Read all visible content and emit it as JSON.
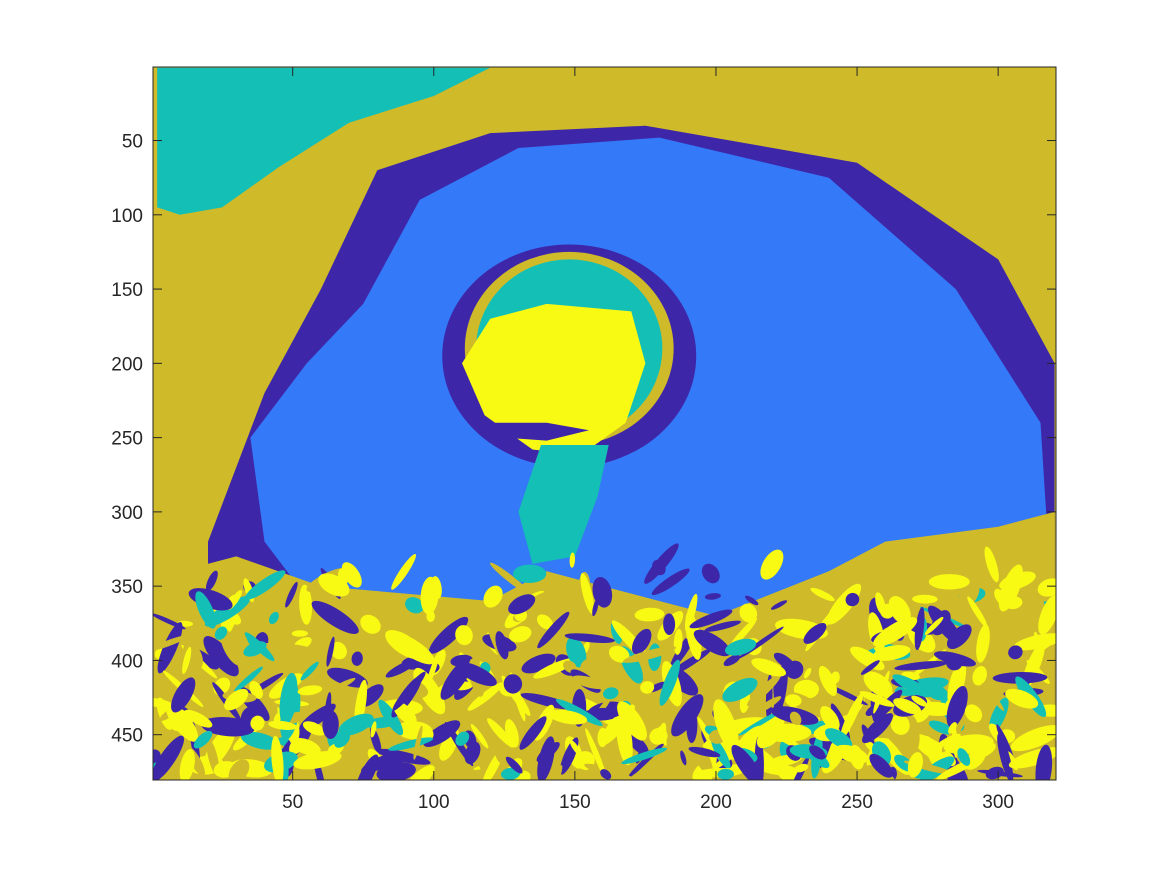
{
  "chart_data": {
    "type": "heatmap",
    "title": "",
    "xlabel": "",
    "ylabel": "",
    "xlim": [
      0.5,
      320.5
    ],
    "ylim": [
      0.5,
      480.5
    ],
    "y_reversed": true,
    "x_ticks": [
      {
        "value": 50,
        "label": "50"
      },
      {
        "value": 100,
        "label": "100"
      },
      {
        "value": 150,
        "label": "150"
      },
      {
        "value": 200,
        "label": "200"
      },
      {
        "value": 250,
        "label": "250"
      },
      {
        "value": 300,
        "label": "300"
      }
    ],
    "y_ticks": [
      {
        "value": 50,
        "label": "50"
      },
      {
        "value": 100,
        "label": "100"
      },
      {
        "value": 150,
        "label": "150"
      },
      {
        "value": 200,
        "label": "200"
      },
      {
        "value": 250,
        "label": "250"
      },
      {
        "value": 300,
        "label": "300"
      },
      {
        "value": 350,
        "label": "350"
      },
      {
        "value": 400,
        "label": "400"
      },
      {
        "value": 450,
        "label": "450"
      }
    ],
    "grid": false,
    "legend": "none",
    "colormap": [
      "#3e26a8",
      "#3479f8",
      "#14bfb6",
      "#cfbb29",
      "#f9fa14"
    ],
    "class_names": [
      "dark-blue",
      "blue",
      "teal",
      "olive",
      "yellow"
    ],
    "background_class": 3,
    "regions": [
      {
        "class": 2,
        "kind": "polygon",
        "points": [
          [
            2,
            1
          ],
          [
            120,
            1
          ],
          [
            100,
            20
          ],
          [
            70,
            38
          ],
          [
            45,
            68
          ],
          [
            25,
            95
          ],
          [
            10,
            100
          ],
          [
            2,
            95
          ]
        ]
      },
      {
        "class": 0,
        "kind": "polygon",
        "points": [
          [
            60,
            150
          ],
          [
            80,
            70
          ],
          [
            120,
            45
          ],
          [
            175,
            40
          ],
          [
            250,
            65
          ],
          [
            300,
            130
          ],
          [
            320,
            200
          ],
          [
            320,
            470
          ],
          [
            20,
            470
          ],
          [
            20,
            320
          ],
          [
            40,
            220
          ]
        ]
      },
      {
        "class": 1,
        "kind": "polygon",
        "points": [
          [
            75,
            160
          ],
          [
            95,
            90
          ],
          [
            130,
            55
          ],
          [
            180,
            48
          ],
          [
            240,
            75
          ],
          [
            285,
            150
          ],
          [
            315,
            240
          ],
          [
            318,
            330
          ],
          [
            290,
            370
          ],
          [
            250,
            390
          ],
          [
            210,
            410
          ],
          [
            150,
            415
          ],
          [
            100,
            400
          ],
          [
            60,
            370
          ],
          [
            40,
            320
          ],
          [
            35,
            250
          ],
          [
            55,
            200
          ]
        ]
      },
      {
        "class": 0,
        "kind": "ellipse",
        "cx": 148,
        "cy": 195,
        "rx": 45,
        "ry": 75
      },
      {
        "class": 3,
        "kind": "ellipse",
        "cx": 148,
        "cy": 190,
        "rx": 37,
        "ry": 65
      },
      {
        "class": 2,
        "kind": "ellipse",
        "cx": 148,
        "cy": 190,
        "rx": 33,
        "ry": 60
      },
      {
        "class": 4,
        "kind": "polygon",
        "points": [
          [
            120,
            170
          ],
          [
            140,
            160
          ],
          [
            170,
            165
          ],
          [
            175,
            200
          ],
          [
            168,
            240
          ],
          [
            152,
            262
          ],
          [
            135,
            258
          ],
          [
            118,
            235
          ],
          [
            110,
            200
          ]
        ]
      },
      {
        "class": 0,
        "kind": "polygon",
        "points": [
          [
            120,
            240
          ],
          [
            140,
            240
          ],
          [
            155,
            245
          ],
          [
            140,
            252
          ],
          [
            125,
            250
          ]
        ]
      },
      {
        "class": 2,
        "kind": "polygon",
        "points": [
          [
            138,
            255
          ],
          [
            162,
            255
          ],
          [
            158,
            290
          ],
          [
            150,
            330
          ],
          [
            135,
            335
          ],
          [
            130,
            300
          ]
        ]
      },
      {
        "class": 3,
        "kind": "polygon",
        "points": [
          [
            0,
            345
          ],
          [
            30,
            330
          ],
          [
            60,
            350
          ],
          [
            120,
            360
          ],
          [
            140,
            340
          ],
          [
            160,
            350
          ],
          [
            200,
            370
          ],
          [
            240,
            340
          ],
          [
            260,
            320
          ],
          [
            300,
            310
          ],
          [
            320,
            300
          ],
          [
            320,
            480
          ],
          [
            0,
            480
          ]
        ]
      }
    ],
    "noise_region": {
      "x0": 0,
      "y0": 330,
      "x1": 320,
      "y1": 480,
      "seed": 7
    }
  }
}
